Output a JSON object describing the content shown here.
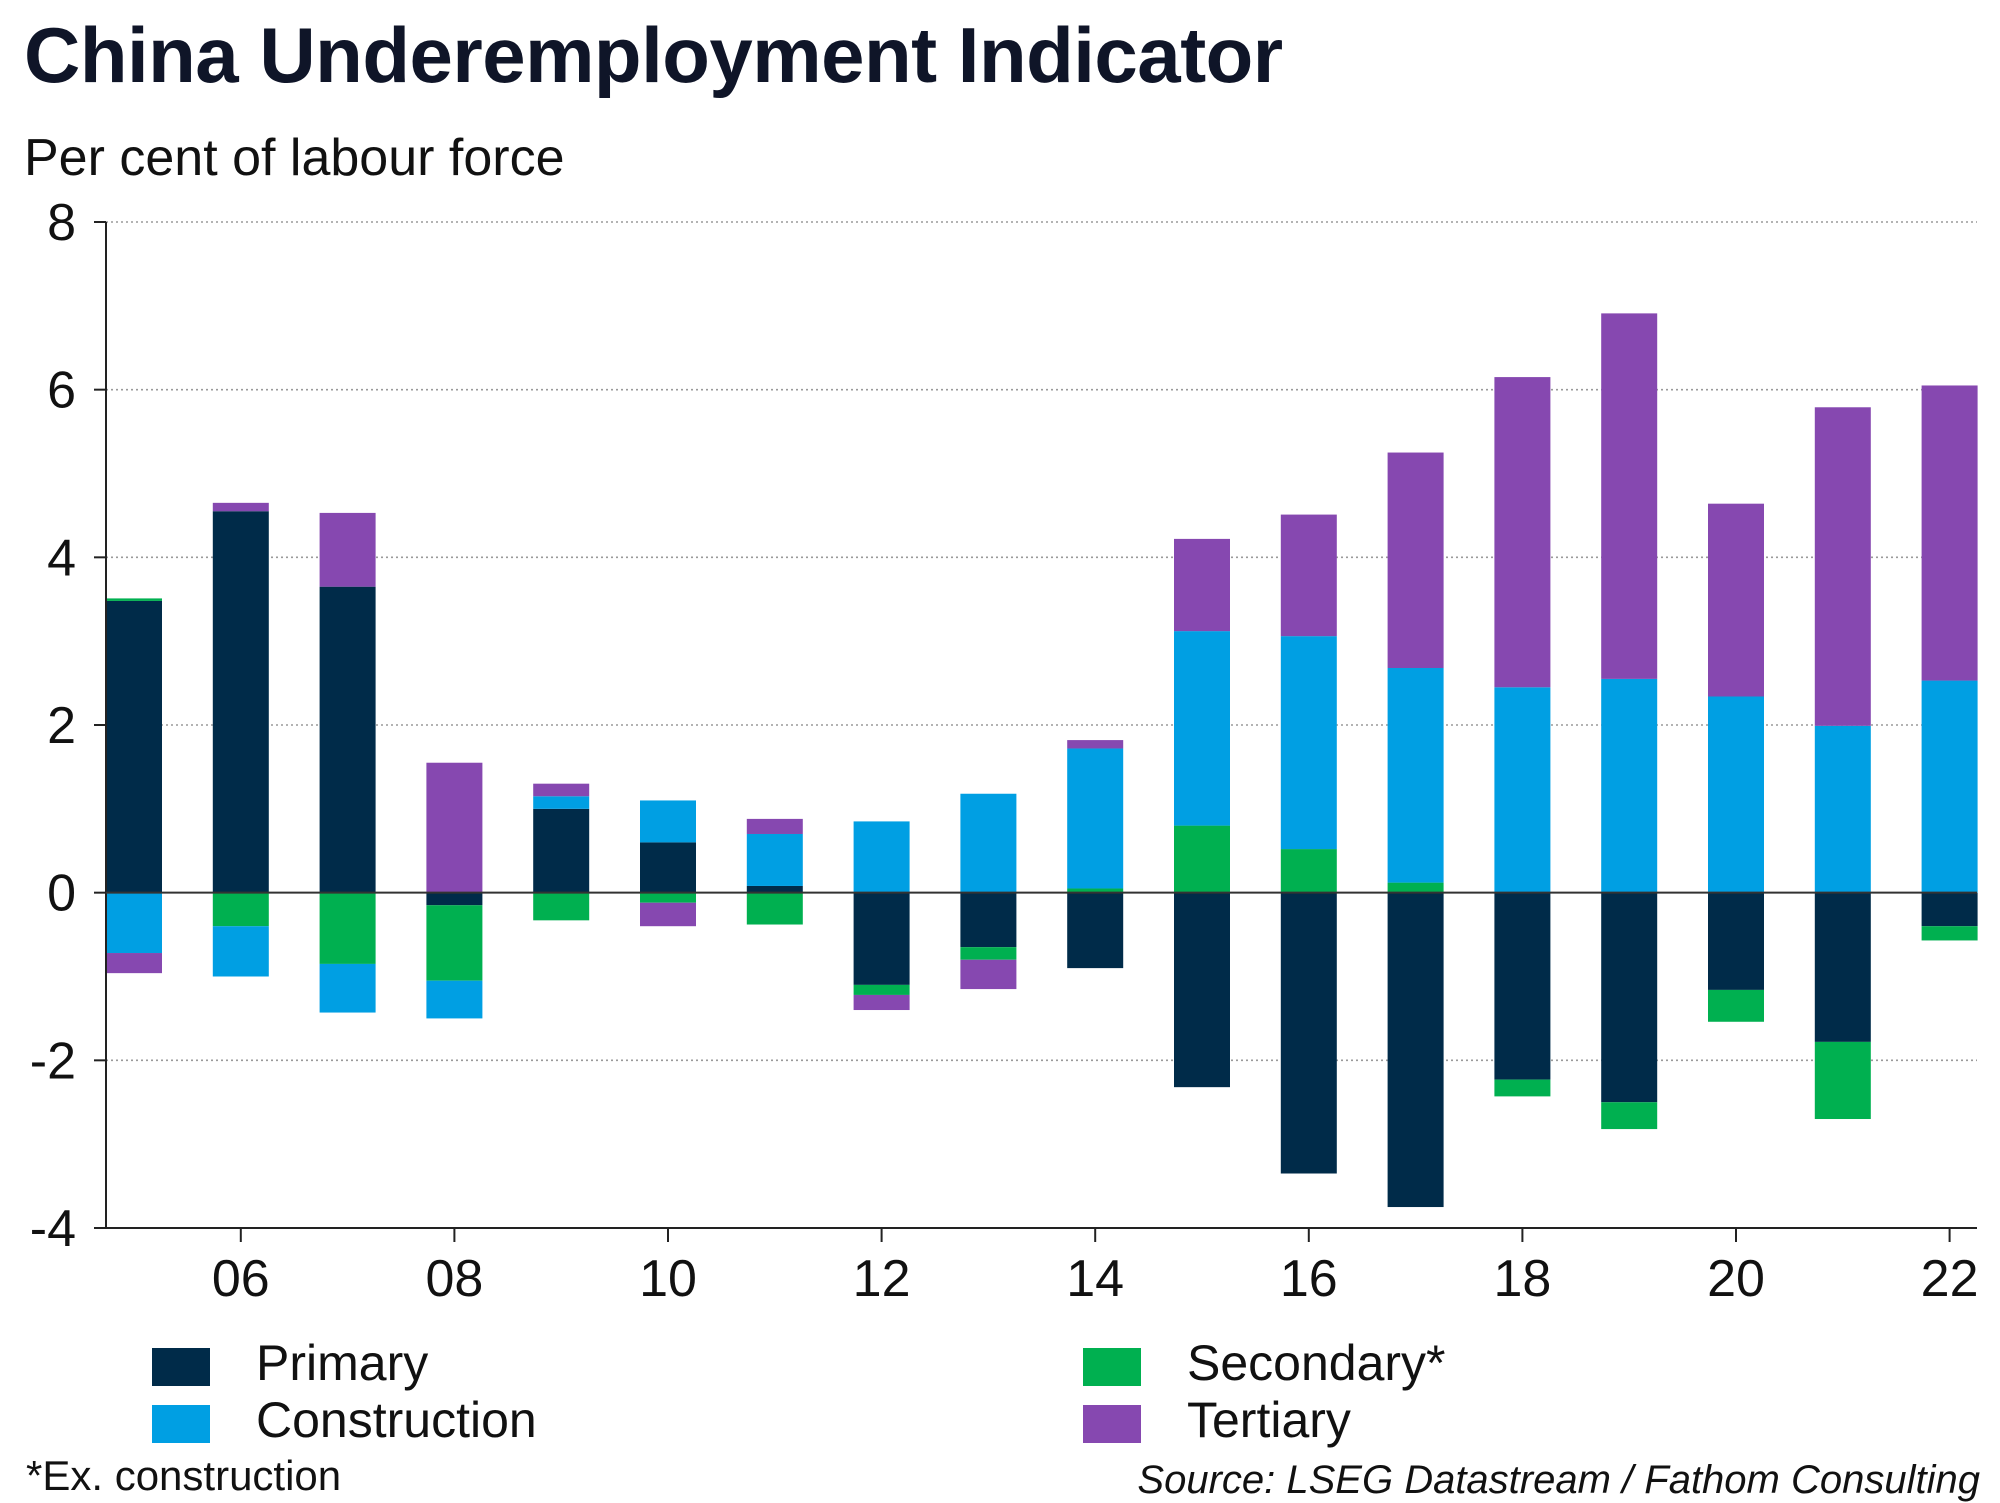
{
  "title": "China Underemployment Indicator",
  "subtitle": "Per cent of labour force",
  "footnote": "*Ex. construction",
  "source": "Source: LSEG Datastream / Fathom Consulting",
  "legend": [
    {
      "name": "Primary",
      "color": "#002b49"
    },
    {
      "name": "Secondary*",
      "color": "#00b050"
    },
    {
      "name": "Construction",
      "color": "#009fe3"
    },
    {
      "name": "Tertiary",
      "color": "#8648b0"
    }
  ],
  "chart_data": {
    "type": "bar",
    "stacked": true,
    "categories": [
      "2005",
      "2006",
      "2007",
      "2008",
      "2009",
      "2010",
      "2011",
      "2012",
      "2013",
      "2014",
      "2015",
      "2016",
      "2017",
      "2018",
      "2019",
      "2020",
      "2021",
      "2022"
    ],
    "x_tick_labels": [
      "06",
      "08",
      "10",
      "12",
      "14",
      "16",
      "18",
      "20",
      "22"
    ],
    "x_tick_categories": [
      "2006",
      "2008",
      "2010",
      "2012",
      "2014",
      "2016",
      "2018",
      "2020",
      "2022"
    ],
    "y_ticks": [
      8,
      6,
      4,
      2,
      0,
      -2,
      -4
    ],
    "ylim": [
      -4,
      8
    ],
    "grid": "horizontal dotted",
    "legend_position": "bottom",
    "series": [
      {
        "name": "Primary",
        "color": "#002b49",
        "values": [
          3.48,
          4.55,
          3.65,
          -0.15,
          1.0,
          0.6,
          0.08,
          -1.1,
          -0.65,
          -0.9,
          -2.32,
          -3.35,
          -3.75,
          -2.23,
          -2.5,
          -1.16,
          -1.78,
          -0.4
        ]
      },
      {
        "name": "Secondary*",
        "color": "#00b050",
        "values": [
          0.03,
          -0.4,
          -0.85,
          -0.9,
          -0.33,
          -0.12,
          -0.38,
          -0.12,
          -0.15,
          0.05,
          0.8,
          0.52,
          0.12,
          -0.2,
          -0.32,
          -0.38,
          -0.92,
          -0.17
        ]
      },
      {
        "name": "Construction",
        "color": "#009fe3",
        "values": [
          -0.72,
          -0.6,
          -0.58,
          -0.45,
          0.15,
          0.5,
          0.62,
          0.85,
          1.18,
          1.67,
          2.32,
          2.54,
          2.56,
          2.45,
          2.55,
          2.34,
          1.99,
          2.53
        ]
      },
      {
        "name": "Tertiary",
        "color": "#8648b0",
        "values": [
          -0.24,
          0.1,
          0.88,
          1.55,
          0.15,
          -0.28,
          0.18,
          -0.18,
          -0.35,
          0.1,
          1.1,
          1.45,
          2.57,
          3.7,
          4.36,
          2.3,
          3.8,
          3.52
        ]
      }
    ]
  }
}
